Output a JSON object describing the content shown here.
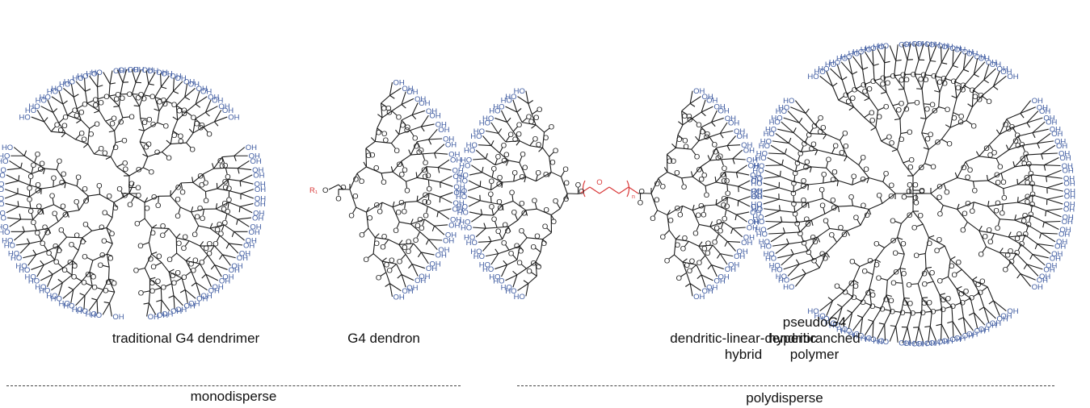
{
  "structures": [
    {
      "label_lines": [
        "traditional G4 dendrimer"
      ]
    },
    {
      "label_lines": [
        "G4 dendron"
      ],
      "substituent": "R₁",
      "chain_terminal": "O"
    },
    {
      "label_lines": [
        "dendritic-linear-dendritic",
        "hybrid"
      ],
      "linker_atom": "O",
      "repeat_subscript": "n"
    },
    {
      "label_lines": [
        "pseudoG4",
        "hyperbranched",
        "polymer"
      ]
    }
  ],
  "groups": [
    {
      "label": "monodisperse"
    },
    {
      "label": "polydisperse"
    }
  ],
  "atoms": {
    "hydroxyl": "OH",
    "hydroxyl_alt": "HO",
    "oxygen": "O"
  },
  "colors": {
    "bond": "#1a1a1a",
    "hydroxyl": "#3d5aa0",
    "linker": "#d93a3a",
    "oxygen": "#1a1a1a"
  }
}
